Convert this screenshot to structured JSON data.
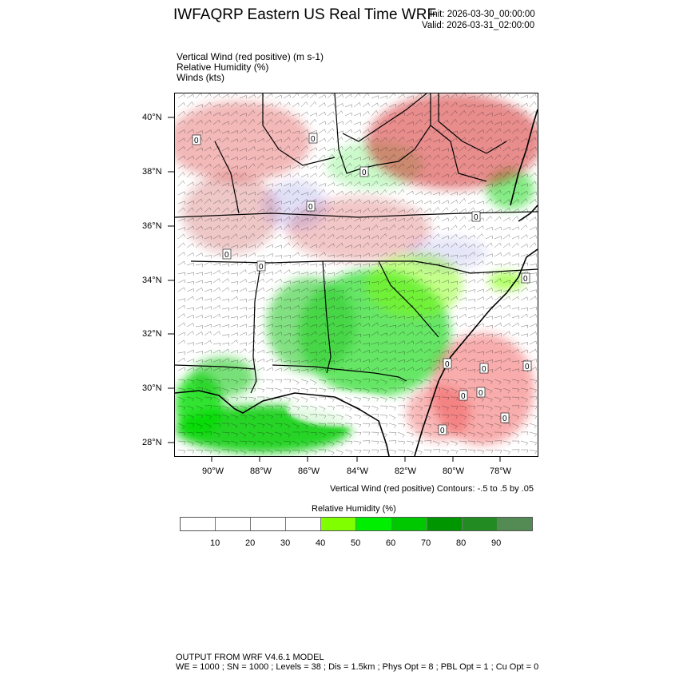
{
  "header": {
    "title": "IWFAQRP Eastern US Real Time WRF",
    "init": "Init: 2026-03-30_00:00:00",
    "valid": "Valid: 2026-03-31_02:00:00"
  },
  "variables": [
    "Vertical Wind (red positive)   (m s-1)",
    "Relative Humidity   (%)",
    "Winds   (kts)"
  ],
  "map": {
    "lat_labels": [
      "40°N",
      "38°N",
      "36°N",
      "34°N",
      "32°N",
      "30°N",
      "28°N"
    ],
    "lon_labels": [
      "90°W",
      "88°W",
      "86°W",
      "84°W",
      "82°W",
      "80°W",
      "78°W"
    ],
    "contour_labels": [
      "0"
    ]
  },
  "contour_note": "Vertical Wind (red positive) Contours: -.5 to .5 by .05",
  "colorbar": {
    "title": "Relative Humidity  (%)",
    "ticks": [
      "10",
      "20",
      "30",
      "40",
      "50",
      "60",
      "70",
      "80",
      "90"
    ],
    "colors": [
      "#ffffff",
      "#ffffff",
      "#ffffff",
      "#ffffff",
      "#80ff00",
      "#00ee00",
      "#00c800",
      "#009600",
      "#228b22",
      "#548b54"
    ]
  },
  "footer": {
    "line1": "OUTPUT FROM WRF V4.6.1 MODEL",
    "line2": "WE = 1000 ; SN = 1000 ; Levels = 38 ; Dis = 1.5km ; Phys Opt = 8 ; PBL Opt = 1 ; Cu Opt = 0"
  }
}
